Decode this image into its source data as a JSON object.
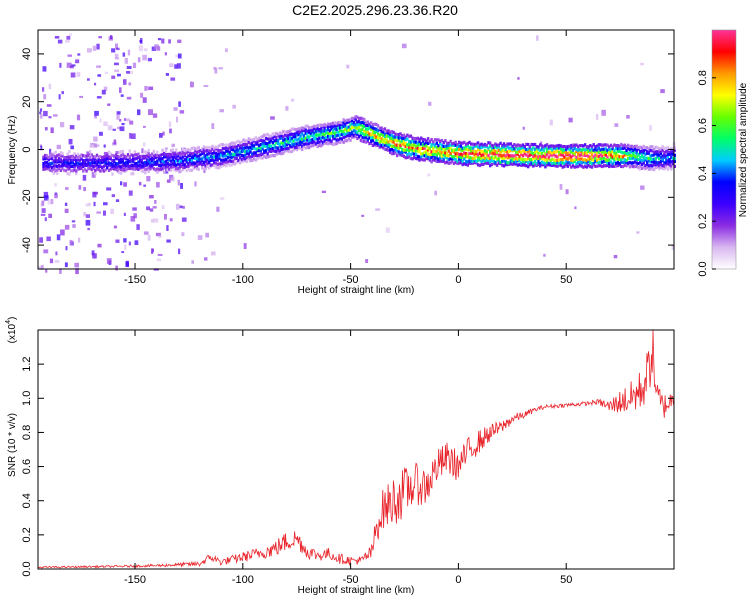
{
  "figure_title": "C2E2.2025.296.23.36.R20",
  "chart_data": [
    {
      "type": "heatmap",
      "name": "spectrogram",
      "xlabel": "Height of straight line (km)",
      "ylabel": "Frequency (Hz)",
      "xlim": [
        -195,
        100
      ],
      "ylim": [
        -50,
        50
      ],
      "xticks": [
        -150,
        -100,
        -50,
        0,
        50
      ],
      "yticks": [
        -40,
        -20,
        0,
        20,
        40
      ],
      "colorbar": {
        "label": "Normalized spectral amplitude",
        "range": [
          0,
          1
        ],
        "ticks": [
          "0.0",
          "0.2",
          "0.4",
          "0.6",
          "0.8"
        ],
        "tick_values": [
          0,
          0.2,
          0.4,
          0.6,
          0.8
        ],
        "colors": [
          "#ffffff",
          "#d9b8f0",
          "#8a2be2",
          "#3c00ff",
          "#0000ff",
          "#00ccff",
          "#00ff66",
          "#66ff00",
          "#ffff00",
          "#ff9900",
          "#ff0000",
          "#ff3399"
        ]
      },
      "ridge": {
        "height_km": [
          -190,
          -160,
          -130,
          -110,
          -90,
          -70,
          -55,
          -48,
          -40,
          -30,
          -20,
          -10,
          0,
          20,
          40,
          60,
          70,
          80,
          90,
          95
        ],
        "frequency_hz": [
          -5,
          -5,
          -4,
          -2,
          2,
          6,
          8,
          10,
          7,
          3,
          1,
          0,
          -1,
          -1.5,
          -2,
          -2,
          -2,
          -2,
          -3,
          -3
        ],
        "amplitude": [
          0.35,
          0.35,
          0.4,
          0.45,
          0.5,
          0.55,
          0.6,
          0.65,
          0.8,
          0.85,
          0.9,
          0.85,
          0.95,
          1.0,
          1.0,
          1.0,
          0.9,
          0.7,
          0.5,
          0.45
        ]
      }
    },
    {
      "type": "line",
      "name": "snr",
      "xlabel": "Height of straight line (km)",
      "ylabel": "SNR (10 * v/v)",
      "y_multiplier": "(x10",
      "y_multiplier_exp": "4",
      "y_multiplier_close": ")",
      "color": "#e8232a",
      "xlim": [
        -195,
        100
      ],
      "ylim": [
        0,
        1.4
      ],
      "xticks": [
        -150,
        -100,
        -50,
        0,
        50
      ],
      "yticks": [
        0.0,
        0.2,
        0.4,
        0.6,
        0.8,
        1.0,
        1.2
      ],
      "ytick_labels": [
        "0.0",
        "0.2",
        "0.4",
        "0.6",
        "0.8",
        "1.0",
        "1.2"
      ],
      "x": [
        -195,
        -180,
        -160,
        -140,
        -130,
        -120,
        -115,
        -110,
        -100,
        -90,
        -85,
        -80,
        -75,
        -70,
        -65,
        -60,
        -55,
        -50,
        -45,
        -40,
        -38,
        -35,
        -30,
        -25,
        -20,
        -15,
        -10,
        -5,
        0,
        5,
        10,
        15,
        20,
        25,
        30,
        35,
        40,
        50,
        60,
        65,
        70,
        75,
        80,
        85,
        88,
        90,
        92,
        95,
        100
      ],
      "y": [
        0.01,
        0.012,
        0.015,
        0.02,
        0.025,
        0.03,
        0.07,
        0.04,
        0.07,
        0.1,
        0.12,
        0.16,
        0.18,
        0.1,
        0.08,
        0.09,
        0.06,
        0.05,
        0.05,
        0.1,
        0.25,
        0.35,
        0.4,
        0.45,
        0.5,
        0.48,
        0.6,
        0.65,
        0.6,
        0.7,
        0.75,
        0.8,
        0.83,
        0.88,
        0.9,
        0.93,
        0.95,
        0.96,
        0.97,
        0.98,
        0.95,
        0.98,
        1.0,
        1.05,
        1.15,
        1.3,
        1.0,
        0.95,
        1.0
      ],
      "noise_amplitude": [
        0.005,
        0.005,
        0.006,
        0.008,
        0.01,
        0.015,
        0.025,
        0.02,
        0.03,
        0.04,
        0.05,
        0.06,
        0.06,
        0.04,
        0.035,
        0.035,
        0.03,
        0.025,
        0.025,
        0.05,
        0.1,
        0.12,
        0.15,
        0.15,
        0.12,
        0.12,
        0.1,
        0.1,
        0.09,
        0.08,
        0.07,
        0.05,
        0.04,
        0.03,
        0.02,
        0.015,
        0.012,
        0.012,
        0.012,
        0.015,
        0.04,
        0.07,
        0.1,
        0.13,
        0.15,
        0.18,
        0.12,
        0.08,
        0.05
      ]
    }
  ]
}
